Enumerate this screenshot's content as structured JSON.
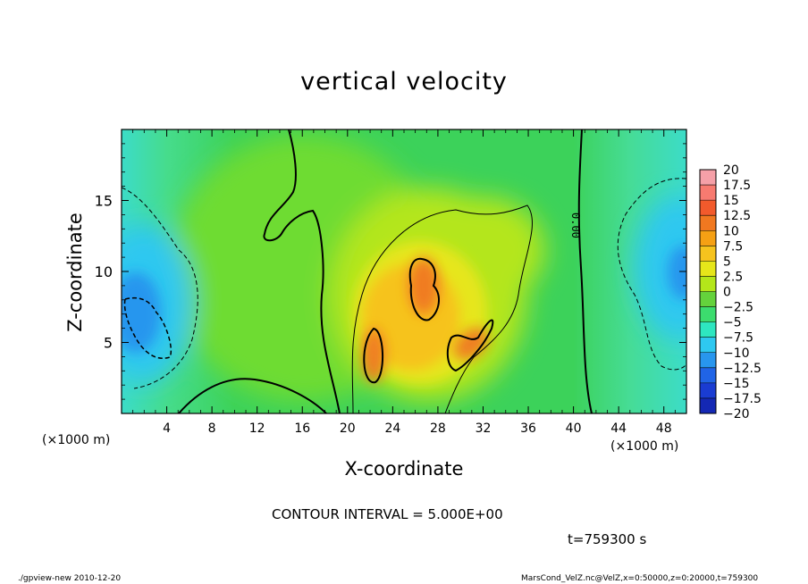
{
  "chart_data": {
    "type": "heatmap",
    "title": "vertical velocity",
    "xlabel": "X-coordinate",
    "ylabel": "Z-coordinate",
    "x_unit_label": "(×1000 m)",
    "y_unit_label": "",
    "xlim": [
      0,
      50
    ],
    "ylim": [
      0,
      20
    ],
    "x_ticks": [
      "4",
      "8",
      "12",
      "16",
      "20",
      "24",
      "28",
      "32",
      "36",
      "40",
      "44",
      "48"
    ],
    "y_ticks": [
      "5",
      "10",
      "15"
    ],
    "colorbar": {
      "labels": [
        "20",
        "17.5",
        "15",
        "12.5",
        "10",
        "7.5",
        "5",
        "2.5",
        "0",
        "−2.5",
        "−5",
        "−7.5",
        "−10",
        "−12.5",
        "−15",
        "−17.5",
        "−20"
      ],
      "colors": [
        "#f5a0a8",
        "#f77a70",
        "#f25a2c",
        "#f07820",
        "#f5a014",
        "#f6c31e",
        "#e6e61a",
        "#b4e61a",
        "#64d23c",
        "#3cdc6e",
        "#2ee6c0",
        "#2ec8f0",
        "#2896ee",
        "#2064e6",
        "#1a3cd2",
        "#1428b4",
        "#6420b4"
      ]
    },
    "contour_interval_text": "CONTOUR INTERVAL = 5.000E+00",
    "contour_label": "0.00",
    "time_text": "t=759300 s",
    "features": [
      {
        "name": "updraft core",
        "x": 22,
        "z": 4.2,
        "value": 12
      },
      {
        "name": "updraft core",
        "x": 26.5,
        "z": 9,
        "value": 12
      },
      {
        "name": "updraft core",
        "x": 30.5,
        "z": 5,
        "value": 10
      },
      {
        "name": "downdraft",
        "x": 2,
        "z": 6.5,
        "value": -9
      },
      {
        "name": "downdraft",
        "x": 48.5,
        "z": 10,
        "value": -9
      }
    ]
  },
  "footer": {
    "left": "./gpview-new   2010-12-20",
    "right": "MarsCond_VelZ.nc@VelZ,x=0:50000,z=0:20000,t=759300"
  }
}
